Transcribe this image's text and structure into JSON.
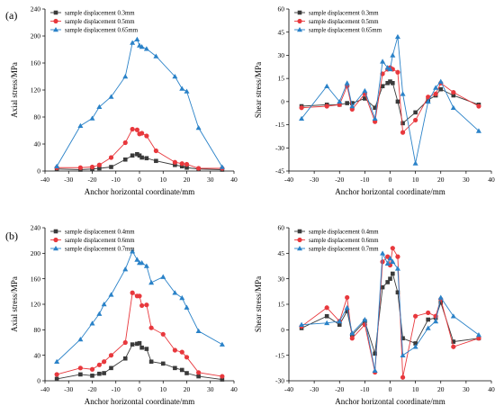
{
  "panel_labels": [
    "(a)",
    "(b)"
  ],
  "chart_data": [
    {
      "type": "line",
      "panel": "(a)",
      "xlabel": "Anchor horizontal coordinate/mm",
      "ylabel": "Axial stress/MPa",
      "xlim": [
        -40,
        40
      ],
      "ylim": [
        0,
        240
      ],
      "xticks": [
        -40,
        -30,
        -20,
        -10,
        0,
        10,
        20,
        30,
        40
      ],
      "yticks": [
        0,
        40,
        80,
        120,
        160,
        200,
        240
      ],
      "legend_position": "top-left",
      "series": [
        {
          "name": "sample displacement 0.3mm",
          "marker": "square",
          "color": "#3a3a3a",
          "x": [
            -35,
            -25,
            -20,
            -17,
            -12,
            -6,
            -3,
            -1,
            0,
            1,
            3,
            7,
            15,
            18,
            20,
            25,
            35
          ],
          "y": [
            3,
            2,
            3,
            4,
            6,
            17,
            23,
            25,
            23,
            20,
            19,
            15,
            9,
            7,
            5,
            3,
            2
          ]
        },
        {
          "name": "sample displacement 0.5mm",
          "marker": "circle",
          "color": "#e8383d",
          "x": [
            -35,
            -25,
            -20,
            -17,
            -12,
            -6,
            -3,
            -1,
            0,
            1,
            3,
            7,
            15,
            18,
            20,
            25,
            35
          ],
          "y": [
            5,
            5,
            6,
            9,
            20,
            42,
            62,
            61,
            55,
            56,
            52,
            30,
            13,
            11,
            10,
            4,
            4
          ]
        },
        {
          "name": "sample displacement 0.65mm",
          "marker": "triangle",
          "color": "#2a82c8",
          "x": [
            -35,
            -25,
            -20,
            -17,
            -12,
            -6,
            -3,
            -1,
            0,
            1,
            3,
            7,
            15,
            18,
            20,
            25,
            35
          ],
          "y": [
            7,
            67,
            78,
            95,
            110,
            140,
            190,
            195,
            186,
            184,
            181,
            170,
            140,
            122,
            118,
            64,
            6
          ]
        }
      ]
    },
    {
      "type": "line",
      "panel": "(a)",
      "xlabel": "Anchor horizontal coordinate/mm",
      "ylabel": "Shear stress/MPa",
      "xlim": [
        -40,
        40
      ],
      "ylim": [
        -45,
        60
      ],
      "xticks": [
        -40,
        -30,
        -20,
        -10,
        0,
        10,
        20,
        30,
        40
      ],
      "yticks": [
        -45,
        -30,
        -15,
        0,
        15,
        30,
        45,
        60
      ],
      "legend_position": "top-left",
      "series": [
        {
          "name": "sample displacement 0.3mm",
          "marker": "square",
          "color": "#3a3a3a",
          "x": [
            -35,
            -25,
            -20,
            -17,
            -15,
            -10,
            -6,
            -3,
            -1,
            0,
            1,
            3,
            5,
            10,
            15,
            18,
            20,
            25,
            35
          ],
          "y": [
            -3,
            -2,
            -2,
            -1,
            -1,
            2,
            -4,
            10,
            12,
            13,
            12,
            0,
            -14,
            -7,
            1,
            4,
            8,
            4,
            -2
          ]
        },
        {
          "name": "sample displacement 0.5mm",
          "marker": "circle",
          "color": "#e8383d",
          "x": [
            -35,
            -25,
            -20,
            -17,
            -15,
            -10,
            -6,
            -3,
            -1,
            0,
            1,
            3,
            5,
            10,
            15,
            18,
            20,
            25,
            35
          ],
          "y": [
            -4,
            -3,
            -2,
            10,
            -5,
            5,
            -13,
            18,
            21,
            22,
            21,
            19,
            -20,
            -12,
            3,
            5,
            12,
            6,
            -3
          ]
        },
        {
          "name": "sample displacement 0.65mm",
          "marker": "triangle",
          "color": "#2a82c8",
          "x": [
            -35,
            -25,
            -20,
            -17,
            -15,
            -10,
            -6,
            -3,
            -1,
            0,
            1,
            3,
            5,
            10,
            15,
            18,
            20,
            25,
            35
          ],
          "y": [
            -11,
            10,
            0,
            12,
            -3,
            7,
            -11,
            26,
            22,
            21,
            30,
            42,
            5,
            -40,
            0,
            9,
            13,
            -4,
            -19
          ]
        }
      ]
    },
    {
      "type": "line",
      "panel": "(b)",
      "xlabel": "Anchor horizontal coordinate/mm",
      "ylabel": "Axial stress/MPa",
      "xlim": [
        -40,
        40
      ],
      "ylim": [
        0,
        240
      ],
      "xticks": [
        -40,
        -30,
        -20,
        -10,
        0,
        10,
        20,
        30,
        40
      ],
      "yticks": [
        0,
        40,
        80,
        120,
        160,
        200,
        240
      ],
      "legend_position": "top-left",
      "series": [
        {
          "name": "sample displacement 0.4mm",
          "marker": "square",
          "color": "#3a3a3a",
          "x": [
            -35,
            -25,
            -20,
            -17,
            -15,
            -12,
            -6,
            -3,
            -1,
            0,
            1,
            3,
            5,
            10,
            15,
            18,
            20,
            25,
            35
          ],
          "y": [
            3,
            10,
            8,
            11,
            12,
            20,
            35,
            57,
            58,
            59,
            52,
            50,
            30,
            27,
            20,
            17,
            12,
            7,
            2
          ]
        },
        {
          "name": "sample displacement 0.6mm",
          "marker": "circle",
          "color": "#e8383d",
          "x": [
            -35,
            -25,
            -20,
            -17,
            -15,
            -12,
            -6,
            -3,
            -1,
            0,
            1,
            3,
            5,
            10,
            15,
            18,
            20,
            25,
            35
          ],
          "y": [
            10,
            20,
            18,
            25,
            30,
            40,
            60,
            138,
            133,
            133,
            118,
            119,
            83,
            73,
            48,
            45,
            37,
            13,
            7
          ]
        },
        {
          "name": "sample displacement 0.7mm",
          "marker": "triangle",
          "color": "#2a82c8",
          "x": [
            -35,
            -25,
            -20,
            -17,
            -15,
            -12,
            -6,
            -3,
            -1,
            0,
            1,
            3,
            5,
            10,
            15,
            18,
            20,
            25,
            35
          ],
          "y": [
            30,
            65,
            90,
            105,
            120,
            135,
            175,
            203,
            190,
            185,
            185,
            180,
            154,
            163,
            138,
            130,
            115,
            78,
            57
          ]
        }
      ]
    },
    {
      "type": "line",
      "panel": "(b)",
      "xlabel": "Anchor horizontal coordinate/mm",
      "ylabel": "Shear stress/MPa",
      "xlim": [
        -40,
        40
      ],
      "ylim": [
        -30,
        60
      ],
      "xticks": [
        -40,
        -30,
        -20,
        -10,
        0,
        10,
        20,
        30,
        40
      ],
      "yticks": [
        -30,
        -15,
        0,
        15,
        30,
        45,
        60
      ],
      "legend_position": "top-left",
      "series": [
        {
          "name": "sample displacement 0.4mm",
          "marker": "square",
          "color": "#3a3a3a",
          "x": [
            -35,
            -25,
            -20,
            -17,
            -15,
            -10,
            -6,
            -3,
            -1,
            0,
            1,
            3,
            5,
            10,
            15,
            18,
            20,
            25,
            35
          ],
          "y": [
            1,
            8,
            3,
            11,
            -3,
            5,
            -14,
            25,
            28,
            30,
            33,
            22,
            -5,
            -8,
            6,
            7,
            16,
            -7,
            -5
          ]
        },
        {
          "name": "sample displacement 0.6mm",
          "marker": "circle",
          "color": "#e8383d",
          "x": [
            -35,
            -25,
            -20,
            -17,
            -15,
            -10,
            -6,
            -3,
            -1,
            0,
            1,
            3,
            5,
            10,
            15,
            18,
            20,
            25,
            35
          ],
          "y": [
            2,
            13,
            5,
            19,
            -5,
            3,
            -25,
            40,
            43,
            38,
            48,
            43,
            -28,
            8,
            10,
            8,
            18,
            -10,
            -5
          ]
        },
        {
          "name": "sample displacement 0.7mm",
          "marker": "triangle",
          "color": "#2a82c8",
          "x": [
            -35,
            -25,
            -20,
            -17,
            -15,
            -10,
            -6,
            -3,
            -1,
            0,
            1,
            3,
            5,
            10,
            15,
            18,
            20,
            25,
            35
          ],
          "y": [
            3,
            4,
            5,
            13,
            -2,
            6,
            -24,
            45,
            39,
            42,
            40,
            36,
            -15,
            -10,
            1,
            5,
            19,
            8,
            -3
          ]
        }
      ]
    }
  ]
}
